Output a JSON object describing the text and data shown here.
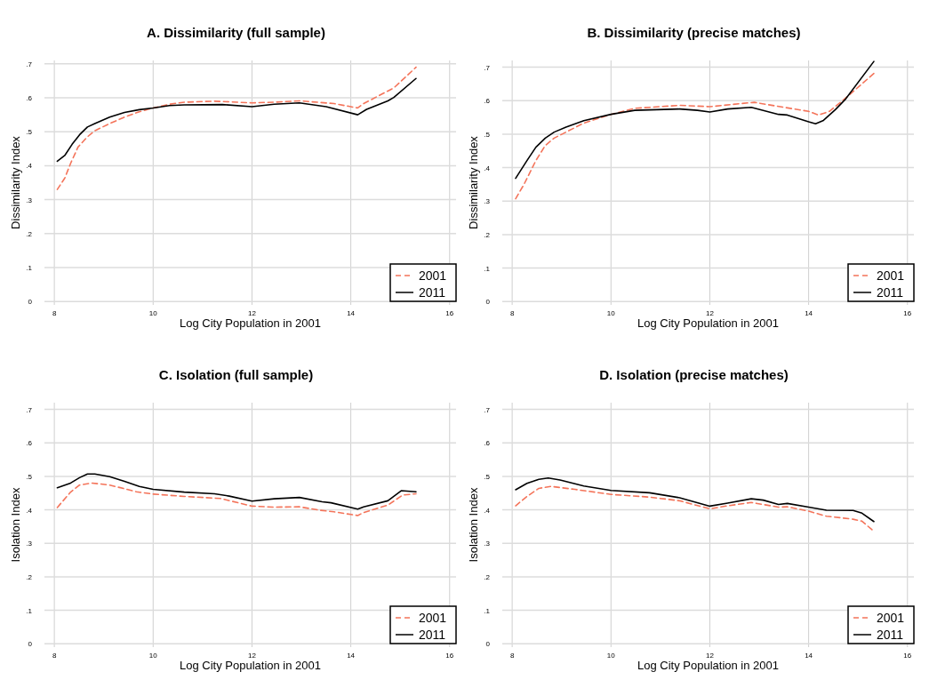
{
  "chart_data": [
    {
      "type": "line",
      "title": "A. Dissimilarity (full sample)",
      "xlabel": "Log City Population in 2001",
      "ylabel": "Dissimilarity Index",
      "xlim": [
        7.8,
        16.13
      ],
      "xticks": [
        8,
        10,
        12,
        14,
        16
      ],
      "ylim": [
        -0.01,
        0.71
      ],
      "yticks": [
        {
          "value": 0,
          "label": "0"
        },
        {
          "value": 0.1,
          "label": ".1"
        },
        {
          "value": 0.2,
          "label": ".2"
        },
        {
          "value": 0.3,
          "label": ".3"
        },
        {
          "value": 0.4,
          "label": ".4"
        },
        {
          "value": 0.5,
          "label": ".5"
        },
        {
          "value": 0.6,
          "label": ".6"
        },
        {
          "value": 0.7,
          "label": ".7"
        }
      ],
      "grid": true,
      "legend": "bottom right",
      "series": [
        {
          "name": "2001",
          "color": "#f4745a",
          "line_style": "dashed",
          "x": [
            8.06,
            8.21,
            8.33,
            8.48,
            8.67,
            8.82,
            9.12,
            9.42,
            9.72,
            10,
            10.33,
            10.63,
            11.24,
            12,
            12.45,
            12.96,
            13.66,
            14.14,
            14.26,
            14.87,
            15.32
          ],
          "values": [
            0.33,
            0.363,
            0.407,
            0.455,
            0.485,
            0.503,
            0.524,
            0.543,
            0.559,
            0.57,
            0.581,
            0.587,
            0.59,
            0.585,
            0.587,
            0.591,
            0.583,
            0.57,
            0.583,
            0.629,
            0.69
          ]
        },
        {
          "name": "2011",
          "color": "#000000",
          "line_style": "solid",
          "x": [
            8.06,
            8.21,
            8.36,
            8.51,
            8.67,
            8.82,
            9.12,
            9.42,
            9.72,
            10,
            10.33,
            10.63,
            11.4,
            12,
            12.45,
            12.96,
            13.5,
            14.14,
            14.32,
            14.75,
            14.87,
            15.32
          ],
          "values": [
            0.413,
            0.43,
            0.463,
            0.491,
            0.514,
            0.524,
            0.543,
            0.557,
            0.565,
            0.57,
            0.577,
            0.579,
            0.58,
            0.574,
            0.581,
            0.585,
            0.574,
            0.55,
            0.566,
            0.591,
            0.601,
            0.657
          ]
        }
      ]
    },
    {
      "type": "line",
      "title": "B. Dissimilarity (precise matches)",
      "xlabel": "Log City Population in 2001",
      "ylabel": "Dissimilarity Index",
      "xlim": [
        7.8,
        16.13
      ],
      "xticks": [
        8,
        10,
        12,
        14,
        16
      ],
      "ylim": [
        -0.01,
        0.72
      ],
      "yticks": [
        {
          "value": 0,
          "label": "0"
        },
        {
          "value": 0.1,
          "label": ".1"
        },
        {
          "value": 0.2,
          "label": ".2"
        },
        {
          "value": 0.3,
          "label": ".3"
        },
        {
          "value": 0.4,
          "label": ".4"
        },
        {
          "value": 0.5,
          "label": ".5"
        },
        {
          "value": 0.6,
          "label": ".6"
        },
        {
          "value": 0.7,
          "label": ".7"
        }
      ],
      "grid": true,
      "legend": "bottom right",
      "series": [
        {
          "name": "2001",
          "color": "#f4745a",
          "line_style": "dashed",
          "x": [
            8.07,
            8.24,
            8.48,
            8.67,
            8.85,
            9.09,
            9.45,
            10,
            10.48,
            11.39,
            12,
            12.9,
            13.5,
            14,
            14.2,
            14.42,
            14.72,
            15.32
          ],
          "values": [
            0.307,
            0.35,
            0.421,
            0.466,
            0.488,
            0.506,
            0.533,
            0.559,
            0.577,
            0.586,
            0.582,
            0.595,
            0.58,
            0.568,
            0.557,
            0.568,
            0.604,
            0.681
          ]
        },
        {
          "name": "2011",
          "color": "#000000",
          "line_style": "solid",
          "x": [
            8.07,
            8.3,
            8.48,
            8.67,
            8.85,
            9.09,
            9.45,
            10,
            10.48,
            11.39,
            11.75,
            12,
            12.36,
            12.84,
            13.39,
            13.57,
            14,
            14.14,
            14.3,
            14.54,
            14.75,
            15.32
          ],
          "values": [
            0.368,
            0.421,
            0.461,
            0.488,
            0.506,
            0.521,
            0.54,
            0.559,
            0.571,
            0.575,
            0.571,
            0.566,
            0.575,
            0.58,
            0.559,
            0.557,
            0.537,
            0.531,
            0.541,
            0.573,
            0.605,
            0.717
          ]
        }
      ]
    },
    {
      "type": "line",
      "title": "C. Isolation (full sample)",
      "xlabel": "Log City Population in 2001",
      "ylabel": "Isolation Index",
      "xlim": [
        7.8,
        16.13
      ],
      "xticks": [
        8,
        10,
        12,
        14,
        16
      ],
      "ylim": [
        -0.01,
        0.72
      ],
      "yticks": [
        {
          "value": 0,
          "label": "0"
        },
        {
          "value": 0.1,
          "label": ".1"
        },
        {
          "value": 0.2,
          "label": ".2"
        },
        {
          "value": 0.3,
          "label": ".3"
        },
        {
          "value": 0.4,
          "label": ".4"
        },
        {
          "value": 0.5,
          "label": ".5"
        },
        {
          "value": 0.6,
          "label": ".6"
        },
        {
          "value": 0.7,
          "label": ".7"
        }
      ],
      "grid": true,
      "legend": "bottom right",
      "series": [
        {
          "name": "2001",
          "color": "#f4745a",
          "line_style": "dashed",
          "x": [
            8.06,
            8.33,
            8.51,
            8.76,
            9.12,
            9.66,
            10,
            10.63,
            11.36,
            12,
            12.45,
            12.96,
            13.36,
            13.66,
            14.14,
            14.26,
            14.75,
            15.05,
            15.32
          ],
          "values": [
            0.407,
            0.453,
            0.474,
            0.48,
            0.474,
            0.454,
            0.447,
            0.44,
            0.434,
            0.411,
            0.408,
            0.409,
            0.399,
            0.394,
            0.383,
            0.392,
            0.414,
            0.444,
            0.448
          ]
        },
        {
          "name": "2011",
          "color": "#000000",
          "line_style": "solid",
          "x": [
            8.06,
            8.33,
            8.51,
            8.67,
            8.82,
            9.12,
            9.42,
            9.72,
            10,
            10.63,
            11.24,
            11.54,
            12,
            12.45,
            12.96,
            13.42,
            13.6,
            14.14,
            14.26,
            14.75,
            15.02,
            15.32
          ],
          "values": [
            0.466,
            0.48,
            0.496,
            0.507,
            0.507,
            0.499,
            0.485,
            0.47,
            0.461,
            0.453,
            0.448,
            0.441,
            0.426,
            0.433,
            0.437,
            0.424,
            0.421,
            0.402,
            0.409,
            0.427,
            0.457,
            0.454
          ]
        }
      ]
    },
    {
      "type": "line",
      "title": "D. Isolation (precise matches)",
      "xlabel": "Log City Population in 2001",
      "ylabel": "Isolation Index",
      "xlim": [
        7.8,
        16.13
      ],
      "xticks": [
        8,
        10,
        12,
        14,
        16
      ],
      "ylim": [
        -0.01,
        0.72
      ],
      "yticks": [
        {
          "value": 0,
          "label": "0"
        },
        {
          "value": 0.1,
          "label": ".1"
        },
        {
          "value": 0.2,
          "label": ".2"
        },
        {
          "value": 0.3,
          "label": ".3"
        },
        {
          "value": 0.4,
          "label": ".4"
        },
        {
          "value": 0.5,
          "label": ".5"
        },
        {
          "value": 0.6,
          "label": ".6"
        },
        {
          "value": 0.7,
          "label": ".7"
        }
      ],
      "grid": true,
      "legend": "bottom right",
      "series": [
        {
          "name": "2001",
          "color": "#f4745a",
          "line_style": "dashed",
          "x": [
            8.07,
            8.3,
            8.54,
            8.79,
            9.27,
            10,
            10.78,
            11.39,
            12,
            12.36,
            12.84,
            13.39,
            13.57,
            14,
            14.36,
            14.9,
            15.08,
            15.32
          ],
          "values": [
            0.412,
            0.44,
            0.464,
            0.47,
            0.461,
            0.446,
            0.438,
            0.427,
            0.403,
            0.412,
            0.422,
            0.408,
            0.409,
            0.396,
            0.381,
            0.372,
            0.366,
            0.336
          ]
        },
        {
          "name": "2011",
          "color": "#000000",
          "line_style": "solid",
          "x": [
            8.07,
            8.3,
            8.54,
            8.73,
            8.97,
            9.45,
            10,
            10.78,
            11.39,
            12,
            12.36,
            12.84,
            13.08,
            13.39,
            13.57,
            14,
            14.36,
            14.9,
            15.08,
            15.32
          ],
          "values": [
            0.46,
            0.479,
            0.491,
            0.495,
            0.489,
            0.471,
            0.458,
            0.451,
            0.436,
            0.411,
            0.42,
            0.433,
            0.429,
            0.416,
            0.419,
            0.408,
            0.399,
            0.398,
            0.39,
            0.365
          ]
        }
      ]
    }
  ]
}
